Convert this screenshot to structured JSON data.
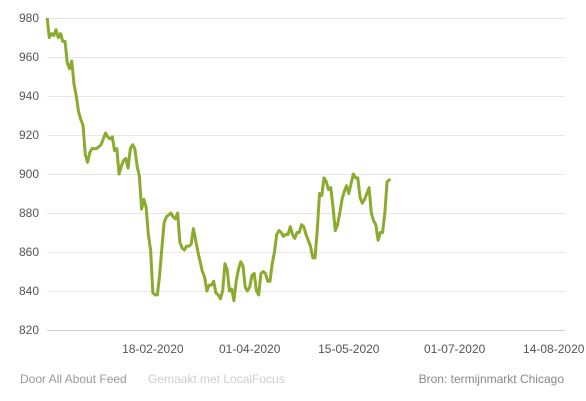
{
  "footer": {
    "credit": "Door All About Feed",
    "made_with": "Gemaakt met LocalFocus",
    "source": "Bron:  termijnmarkt Chicago"
  },
  "chart_data": {
    "type": "line",
    "title": "",
    "xlabel": "",
    "ylabel": "",
    "ylim": [
      820,
      980
    ],
    "yticks": [
      820,
      840,
      860,
      880,
      900,
      920,
      940,
      960,
      980
    ],
    "xlim": [
      "2020-01-02",
      "2020-08-19"
    ],
    "xticks": [
      {
        "date": "2020-02-18",
        "label": "18-02-2020"
      },
      {
        "date": "2020-04-01",
        "label": "01-04-2020"
      },
      {
        "date": "2020-05-15",
        "label": "15-05-2020"
      },
      {
        "date": "2020-07-01",
        "label": "01-07-2020"
      },
      {
        "date": "2020-08-14",
        "label": "14-08-2020"
      }
    ],
    "grid": true,
    "colors": {
      "line": "#8aab2e"
    },
    "series": [
      {
        "points": [
          [
            "2020-01-02",
            981
          ],
          [
            "2020-01-03",
            970
          ],
          [
            "2020-01-04",
            972
          ],
          [
            "2020-01-05",
            971
          ],
          [
            "2020-01-06",
            974
          ],
          [
            "2020-01-07",
            970
          ],
          [
            "2020-01-08",
            972
          ],
          [
            "2020-01-09",
            968
          ],
          [
            "2020-01-10",
            968
          ],
          [
            "2020-01-11",
            957
          ],
          [
            "2020-01-12",
            954
          ],
          [
            "2020-01-13",
            958
          ],
          [
            "2020-01-14",
            946
          ],
          [
            "2020-01-15",
            940
          ],
          [
            "2020-01-16",
            932
          ],
          [
            "2020-01-17",
            928
          ],
          [
            "2020-01-18",
            925
          ],
          [
            "2020-01-19",
            910
          ],
          [
            "2020-01-20",
            906
          ],
          [
            "2020-01-21",
            911
          ],
          [
            "2020-01-22",
            913
          ],
          [
            "2020-01-23",
            913
          ],
          [
            "2020-01-24",
            913
          ],
          [
            "2020-01-25",
            914
          ],
          [
            "2020-01-26",
            915
          ],
          [
            "2020-01-27",
            918
          ],
          [
            "2020-01-28",
            921
          ],
          [
            "2020-01-29",
            919
          ],
          [
            "2020-01-30",
            918
          ],
          [
            "2020-01-31",
            919
          ],
          [
            "2020-02-01",
            912
          ],
          [
            "2020-02-02",
            913
          ],
          [
            "2020-02-03",
            900
          ],
          [
            "2020-02-04",
            904
          ],
          [
            "2020-02-05",
            907
          ],
          [
            "2020-02-06",
            908
          ],
          [
            "2020-02-07",
            903
          ],
          [
            "2020-02-08",
            913
          ],
          [
            "2020-02-09",
            915
          ],
          [
            "2020-02-10",
            913
          ],
          [
            "2020-02-11",
            904
          ],
          [
            "2020-02-12",
            899
          ],
          [
            "2020-02-13",
            882
          ],
          [
            "2020-02-14",
            887
          ],
          [
            "2020-02-15",
            883
          ],
          [
            "2020-02-16",
            869
          ],
          [
            "2020-02-17",
            861
          ],
          [
            "2020-02-18",
            839
          ],
          [
            "2020-02-19",
            838
          ],
          [
            "2020-02-20",
            838
          ],
          [
            "2020-02-21",
            848
          ],
          [
            "2020-02-22",
            862
          ],
          [
            "2020-02-23",
            875
          ],
          [
            "2020-02-24",
            878
          ],
          [
            "2020-02-25",
            879
          ],
          [
            "2020-02-26",
            880
          ],
          [
            "2020-02-27",
            878
          ],
          [
            "2020-02-28",
            877
          ],
          [
            "2020-02-29",
            880
          ],
          [
            "2020-03-01",
            865
          ],
          [
            "2020-03-02",
            862
          ],
          [
            "2020-03-03",
            861
          ],
          [
            "2020-03-04",
            863
          ],
          [
            "2020-03-05",
            863
          ],
          [
            "2020-03-06",
            864
          ],
          [
            "2020-03-07",
            872
          ],
          [
            "2020-03-08",
            866
          ],
          [
            "2020-03-09",
            860
          ],
          [
            "2020-03-10",
            855
          ],
          [
            "2020-03-11",
            850
          ],
          [
            "2020-03-12",
            847
          ],
          [
            "2020-03-13",
            840
          ],
          [
            "2020-03-14",
            843
          ],
          [
            "2020-03-15",
            843
          ],
          [
            "2020-03-16",
            845
          ],
          [
            "2020-03-17",
            839
          ],
          [
            "2020-03-18",
            838
          ],
          [
            "2020-03-19",
            836
          ],
          [
            "2020-03-20",
            840
          ],
          [
            "2020-03-21",
            854
          ],
          [
            "2020-03-22",
            851
          ],
          [
            "2020-03-23",
            840
          ],
          [
            "2020-03-24",
            841
          ],
          [
            "2020-03-25",
            835
          ],
          [
            "2020-03-26",
            845
          ],
          [
            "2020-03-27",
            851
          ],
          [
            "2020-03-28",
            855
          ],
          [
            "2020-03-29",
            853
          ],
          [
            "2020-03-30",
            842
          ],
          [
            "2020-03-31",
            840
          ],
          [
            "2020-04-01",
            842
          ],
          [
            "2020-04-02",
            848
          ],
          [
            "2020-04-03",
            849
          ],
          [
            "2020-04-04",
            840
          ],
          [
            "2020-04-05",
            838
          ],
          [
            "2020-04-06",
            849
          ],
          [
            "2020-04-07",
            850
          ],
          [
            "2020-04-08",
            849
          ],
          [
            "2020-04-09",
            845
          ],
          [
            "2020-04-10",
            845
          ],
          [
            "2020-04-11",
            854
          ],
          [
            "2020-04-12",
            860
          ],
          [
            "2020-04-13",
            869
          ],
          [
            "2020-04-14",
            871
          ],
          [
            "2020-04-15",
            870
          ],
          [
            "2020-04-16",
            868
          ],
          [
            "2020-04-17",
            869
          ],
          [
            "2020-04-18",
            869
          ],
          [
            "2020-04-19",
            873
          ],
          [
            "2020-04-20",
            869
          ],
          [
            "2020-04-21",
            867
          ],
          [
            "2020-04-22",
            870
          ],
          [
            "2020-04-23",
            870
          ],
          [
            "2020-04-24",
            874
          ],
          [
            "2020-04-25",
            873
          ],
          [
            "2020-04-26",
            869
          ],
          [
            "2020-04-27",
            866
          ],
          [
            "2020-04-28",
            863
          ],
          [
            "2020-04-29",
            857
          ],
          [
            "2020-04-30",
            857
          ],
          [
            "2020-05-01",
            871
          ],
          [
            "2020-05-02",
            890
          ],
          [
            "2020-05-03",
            889
          ],
          [
            "2020-05-04",
            898
          ],
          [
            "2020-05-05",
            896
          ],
          [
            "2020-05-06",
            892
          ],
          [
            "2020-05-07",
            893
          ],
          [
            "2020-05-08",
            883
          ],
          [
            "2020-05-09",
            871
          ],
          [
            "2020-05-10",
            874
          ],
          [
            "2020-05-11",
            880
          ],
          [
            "2020-05-12",
            887
          ],
          [
            "2020-05-13",
            891
          ],
          [
            "2020-05-14",
            894
          ],
          [
            "2020-05-15",
            890
          ],
          [
            "2020-05-16",
            895
          ],
          [
            "2020-05-17",
            900
          ],
          [
            "2020-05-18",
            898
          ],
          [
            "2020-05-19",
            898
          ],
          [
            "2020-05-20",
            888
          ],
          [
            "2020-05-21",
            885
          ],
          [
            "2020-05-22",
            887
          ],
          [
            "2020-05-23",
            890
          ],
          [
            "2020-05-24",
            893
          ],
          [
            "2020-05-25",
            880
          ],
          [
            "2020-05-26",
            876
          ],
          [
            "2020-05-27",
            874
          ],
          [
            "2020-05-28",
            866
          ],
          [
            "2020-05-29",
            870
          ],
          [
            "2020-05-30",
            870
          ],
          [
            "2020-05-31",
            880
          ],
          [
            "2020-06-01",
            896
          ],
          [
            "2020-06-02",
            897
          ]
        ]
      }
    ]
  }
}
